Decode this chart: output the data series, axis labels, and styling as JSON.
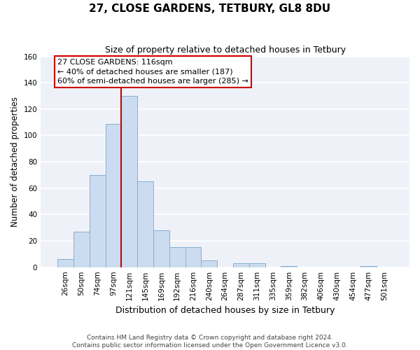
{
  "title": "27, CLOSE GARDENS, TETBURY, GL8 8DU",
  "subtitle": "Size of property relative to detached houses in Tetbury",
  "xlabel": "Distribution of detached houses by size in Tetbury",
  "ylabel": "Number of detached properties",
  "bar_labels": [
    "26sqm",
    "50sqm",
    "74sqm",
    "97sqm",
    "121sqm",
    "145sqm",
    "169sqm",
    "192sqm",
    "216sqm",
    "240sqm",
    "264sqm",
    "287sqm",
    "311sqm",
    "335sqm",
    "359sqm",
    "382sqm",
    "406sqm",
    "430sqm",
    "454sqm",
    "477sqm",
    "501sqm"
  ],
  "bar_values": [
    6,
    27,
    70,
    109,
    130,
    65,
    28,
    15,
    15,
    5,
    0,
    3,
    3,
    0,
    1,
    0,
    0,
    0,
    0,
    1,
    0
  ],
  "bar_color": "#ccdcf0",
  "bar_edge_color": "#85afd4",
  "vline_color": "#cc0000",
  "ylim": [
    0,
    160
  ],
  "yticks": [
    0,
    20,
    40,
    60,
    80,
    100,
    120,
    140,
    160
  ],
  "annotation_line1": "27 CLOSE GARDENS: 116sqm",
  "annotation_line2": "← 40% of detached houses are smaller (187)",
  "annotation_line3": "60% of semi-detached houses are larger (285) →",
  "footer_line1": "Contains HM Land Registry data © Crown copyright and database right 2024.",
  "footer_line2": "Contains public sector information licensed under the Open Government Licence v3.0.",
  "background_color": "#eef2f8",
  "grid_color": "#ffffff",
  "fig_bg_color": "#ffffff",
  "title_fontsize": 11,
  "subtitle_fontsize": 9,
  "ylabel_fontsize": 8.5,
  "xlabel_fontsize": 9,
  "tick_fontsize": 7.5,
  "annot_fontsize": 8,
  "footer_fontsize": 6.5
}
